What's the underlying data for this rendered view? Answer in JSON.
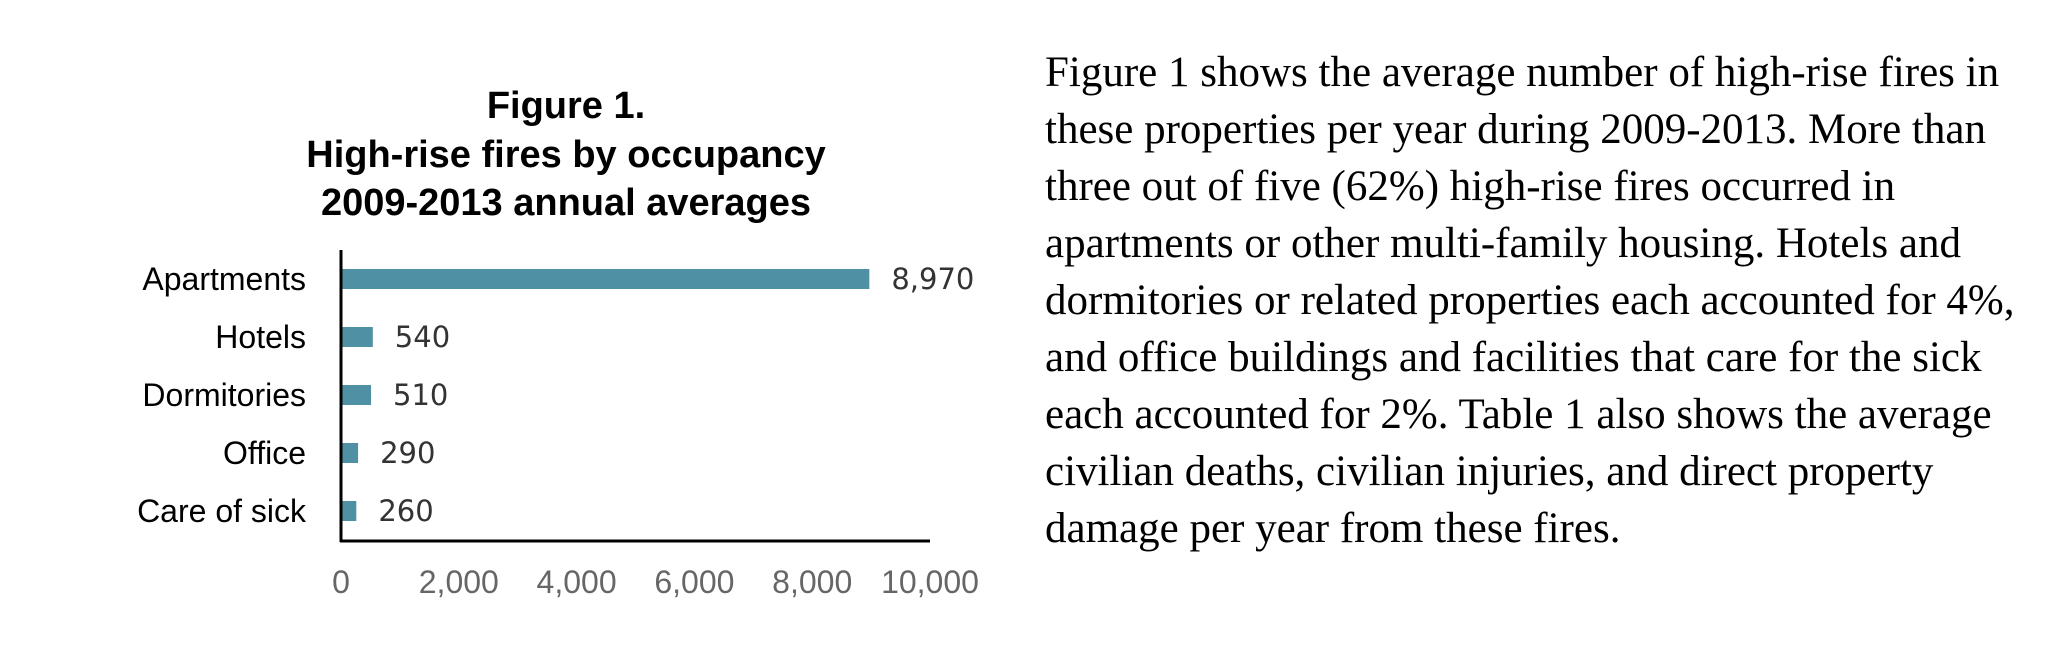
{
  "chart_data": {
    "type": "bar",
    "orientation": "horizontal",
    "title": [
      "Figure 1.",
      "High-rise fires by occupancy",
      "2009-2013 annual averages"
    ],
    "categories": [
      "Apartments",
      "Hotels",
      "Dormitories",
      "Office",
      "Care of sick"
    ],
    "values": [
      8970,
      540,
      510,
      290,
      260
    ],
    "data_labels": [
      "8,970",
      "540",
      "510",
      "290",
      "260"
    ],
    "xlim": [
      0,
      10000
    ],
    "x_ticks": [
      0,
      2000,
      4000,
      6000,
      8000,
      10000
    ],
    "x_tick_labels": [
      "0",
      "2,000",
      "4,000",
      "6,000",
      "8,000",
      "10,000"
    ],
    "bar_color": "#5090a5",
    "grid": false,
    "legend": "none"
  },
  "text": {
    "paragraph": "Figure 1 shows the average number of high-rise fires in these properties per year during 2009-2013. More than three out of five (62%) high-rise fires occurred in apartments or other multi-family housing. Hotels and dormitories or related properties each accounted for 4%, and office buildings and facilities that care for the sick each accounted for 2%. Table 1 also shows the average civilian deaths, civilian injuries, and direct property damage per year from these fires."
  }
}
